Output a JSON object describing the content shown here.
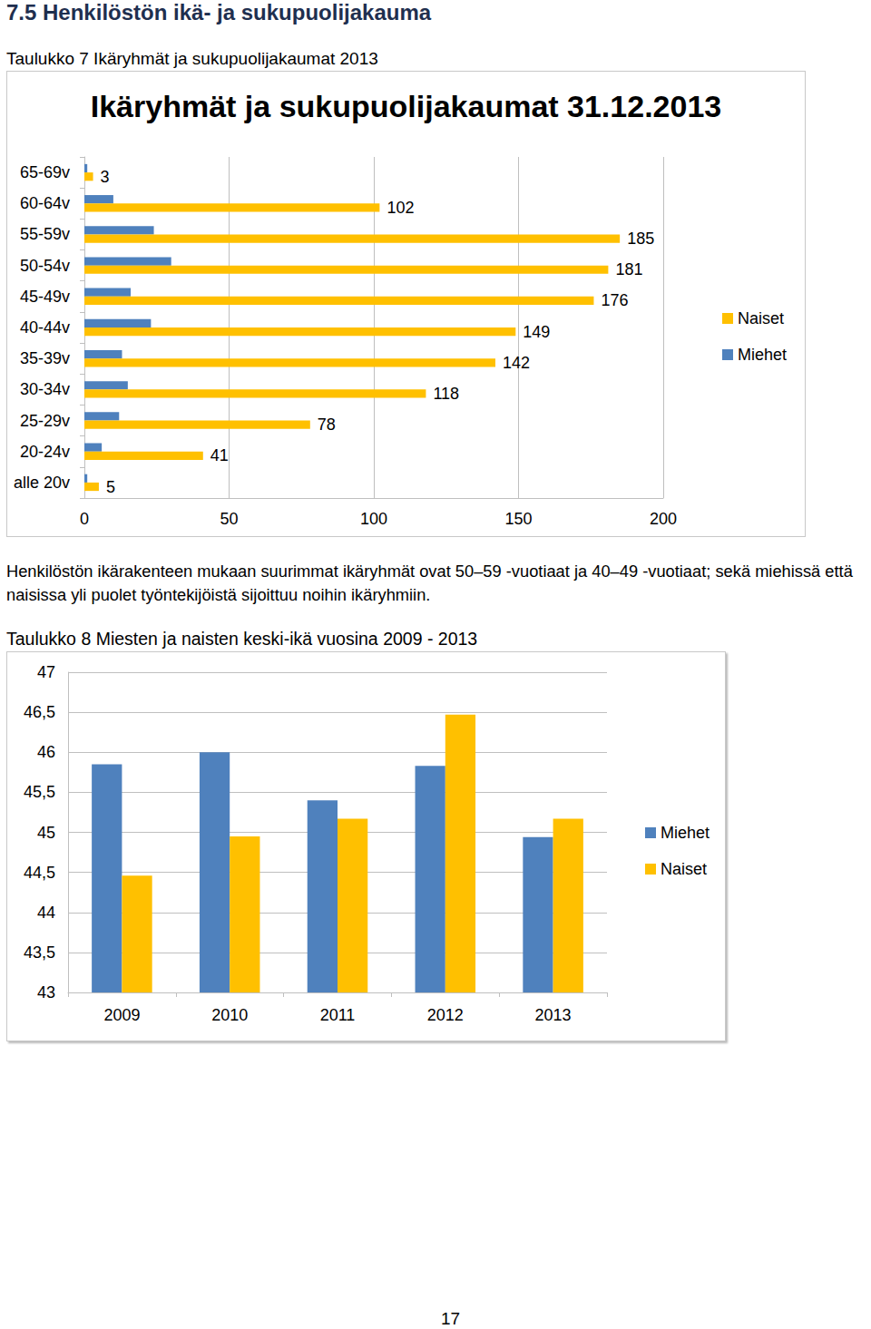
{
  "heading": "7.5 Henkilöstön ikä- ja sukupuolijakauma",
  "caption_1": "Taulukko 7 Ikäryhmät ja sukupuolijakaumat 2013",
  "paragraph": "Henkilöstön ikärakenteen mukaan suurimmat ikäryhmät ovat 50–59 -vuotiaat ja 40–49 -vuotiaat; sekä miehissä että naisissa yli puolet työntekijöistä sijoittuu noihin ikäryhmiin.",
  "caption_2": "Taulukko 8 Miesten ja naisten keski-ikä vuosina 2009 - 2013",
  "page_number": "17",
  "chart_data": [
    {
      "type": "bar",
      "orientation": "horizontal",
      "title": "Ikäryhmät ja sukupuolijakaumat 31.12.2013",
      "categories": [
        "alle 20v",
        "20-24v",
        "25-29v",
        "30-34v",
        "35-39v",
        "40-44v",
        "45-49v",
        "50-54v",
        "55-59v",
        "60-64v",
        "65-69v"
      ],
      "series": [
        {
          "name": "Naiset",
          "color": "#ffc000",
          "data_labels": true,
          "values": [
            5,
            41,
            78,
            118,
            142,
            149,
            176,
            181,
            185,
            102,
            3
          ]
        },
        {
          "name": "Miehet",
          "color": "#4f81bd",
          "values": [
            1,
            6,
            12,
            15,
            13,
            23,
            16,
            30,
            24,
            10,
            1
          ]
        }
      ],
      "xlim": [
        0,
        200
      ],
      "xticks": [
        0,
        50,
        100,
        150,
        200
      ],
      "grid": true,
      "legend": "right"
    },
    {
      "type": "bar",
      "categories": [
        "2009",
        "2010",
        "2011",
        "2012",
        "2013"
      ],
      "series": [
        {
          "name": "Miehet",
          "color": "#4f81bd",
          "values": [
            45.85,
            46.0,
            45.4,
            45.83,
            44.94
          ]
        },
        {
          "name": "Naiset",
          "color": "#ffc000",
          "values": [
            44.46,
            44.95,
            45.17,
            46.47,
            45.17
          ]
        }
      ],
      "ylim": [
        43,
        47
      ],
      "yticks": [
        43,
        {
          "value": 43.5,
          "label": "43,5"
        },
        44,
        {
          "value": 44.5,
          "label": "44,5"
        },
        45,
        {
          "value": 45.5,
          "label": "45,5"
        },
        46,
        {
          "value": 46.5,
          "label": "46,5"
        },
        47
      ],
      "grid": true,
      "legend": "right"
    }
  ]
}
